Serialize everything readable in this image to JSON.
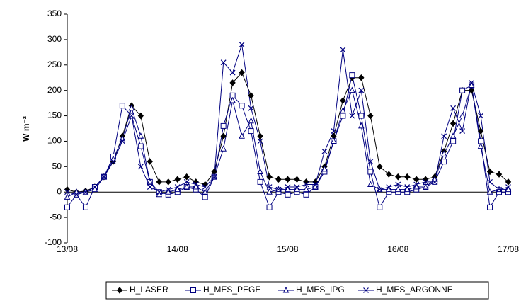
{
  "chart_data": {
    "type": "line",
    "y_label": "W m⁻²",
    "x": [
      0,
      2,
      4,
      6,
      8,
      10,
      12,
      14,
      16,
      18,
      20,
      22,
      24,
      26,
      28,
      30,
      32,
      34,
      36,
      38,
      40,
      42,
      44,
      46,
      48,
      50,
      52,
      54,
      56,
      58,
      60,
      62,
      64,
      66,
      68,
      70,
      72,
      74,
      76,
      78,
      80,
      82,
      84,
      86,
      88,
      90,
      92,
      94,
      96
    ],
    "xlim": [
      0,
      96
    ],
    "xticks": [
      {
        "value": 0,
        "label": "13/08"
      },
      {
        "value": 24,
        "label": "14/08"
      },
      {
        "value": 48,
        "label": "15/08"
      },
      {
        "value": 72,
        "label": "16/08"
      },
      {
        "value": 96,
        "label": "17/08"
      }
    ],
    "ylim": [
      -100,
      350
    ],
    "yticks": [
      -100,
      -50,
      0,
      50,
      100,
      150,
      200,
      250,
      300,
      350
    ],
    "grid": false,
    "legend": "bottom",
    "series": [
      {
        "name": "H_LASER",
        "color": "#000000",
        "marker": "diamond",
        "values": [
          5,
          0,
          2,
          10,
          30,
          60,
          110,
          170,
          150,
          60,
          20,
          20,
          25,
          30,
          20,
          15,
          40,
          110,
          215,
          235,
          190,
          110,
          30,
          25,
          25,
          25,
          20,
          20,
          50,
          110,
          180,
          225,
          225,
          150,
          50,
          35,
          30,
          30,
          25,
          25,
          30,
          80,
          135,
          200,
          200,
          120,
          40,
          35,
          20
        ]
      },
      {
        "name": "H_MES_PEGE",
        "color": "#000080",
        "marker": "square",
        "values": [
          -30,
          -5,
          -30,
          10,
          30,
          70,
          170,
          150,
          90,
          20,
          0,
          -5,
          0,
          10,
          5,
          -10,
          30,
          130,
          190,
          170,
          120,
          20,
          -30,
          0,
          -5,
          0,
          -5,
          10,
          40,
          100,
          150,
          230,
          150,
          40,
          -30,
          0,
          0,
          0,
          5,
          10,
          20,
          60,
          100,
          200,
          210,
          100,
          -30,
          0,
          0
        ]
      },
      {
        "name": "H_MES_IPG",
        "color": "#000080",
        "marker": "triangle",
        "values": [
          -10,
          0,
          0,
          5,
          30,
          65,
          105,
          165,
          110,
          20,
          -5,
          0,
          5,
          10,
          10,
          0,
          30,
          85,
          180,
          110,
          140,
          40,
          0,
          5,
          5,
          5,
          5,
          10,
          45,
          100,
          160,
          200,
          130,
          15,
          5,
          5,
          5,
          5,
          10,
          10,
          25,
          75,
          110,
          150,
          210,
          90,
          0,
          5,
          5
        ]
      },
      {
        "name": "H_MES_ARGONNE",
        "color": "#000080",
        "marker": "cross",
        "values": [
          0,
          -5,
          0,
          10,
          30,
          60,
          100,
          150,
          50,
          10,
          0,
          5,
          10,
          20,
          15,
          10,
          30,
          255,
          235,
          290,
          165,
          100,
          10,
          5,
          10,
          10,
          15,
          15,
          80,
          120,
          280,
          150,
          200,
          60,
          5,
          10,
          15,
          10,
          15,
          20,
          20,
          110,
          165,
          120,
          215,
          150,
          20,
          5,
          10
        ]
      }
    ]
  }
}
